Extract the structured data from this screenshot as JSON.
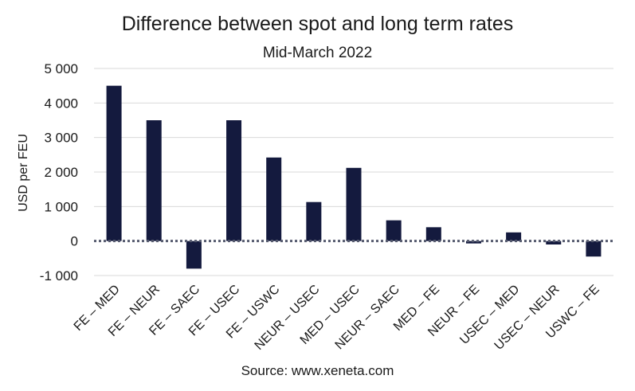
{
  "chart_data": {
    "type": "bar",
    "title": "Difference between spot and long term rates",
    "subtitle": "Mid-March 2022",
    "source": "Source: www.xeneta.com",
    "xlabel": "",
    "ylabel": "USD per FEU",
    "ylim": [
      -1000,
      5000
    ],
    "yticks": [
      5000,
      4000,
      3000,
      2000,
      1000,
      0,
      -1000
    ],
    "ytick_labels": [
      "5 000",
      "4 000",
      "3 000",
      "2 000",
      "1 000",
      "0",
      "-1 000"
    ],
    "grid": true,
    "zero_line_style": "dotted",
    "bar_color": "#141a3e",
    "categories": [
      "FE – MED",
      "FE – NEUR",
      "FE – SAEC",
      "FE – USEC",
      "FE – USWC",
      "NEUR – USEC",
      "MED – USEC",
      "NEUR – SAEC",
      "MED – FE",
      "NEUR – FE",
      "USEC – MED",
      "USEC – NEUR",
      "USWC – FE"
    ],
    "values": [
      4500,
      3500,
      -800,
      3500,
      2420,
      1130,
      2120,
      600,
      400,
      -70,
      250,
      -100,
      -450
    ]
  }
}
